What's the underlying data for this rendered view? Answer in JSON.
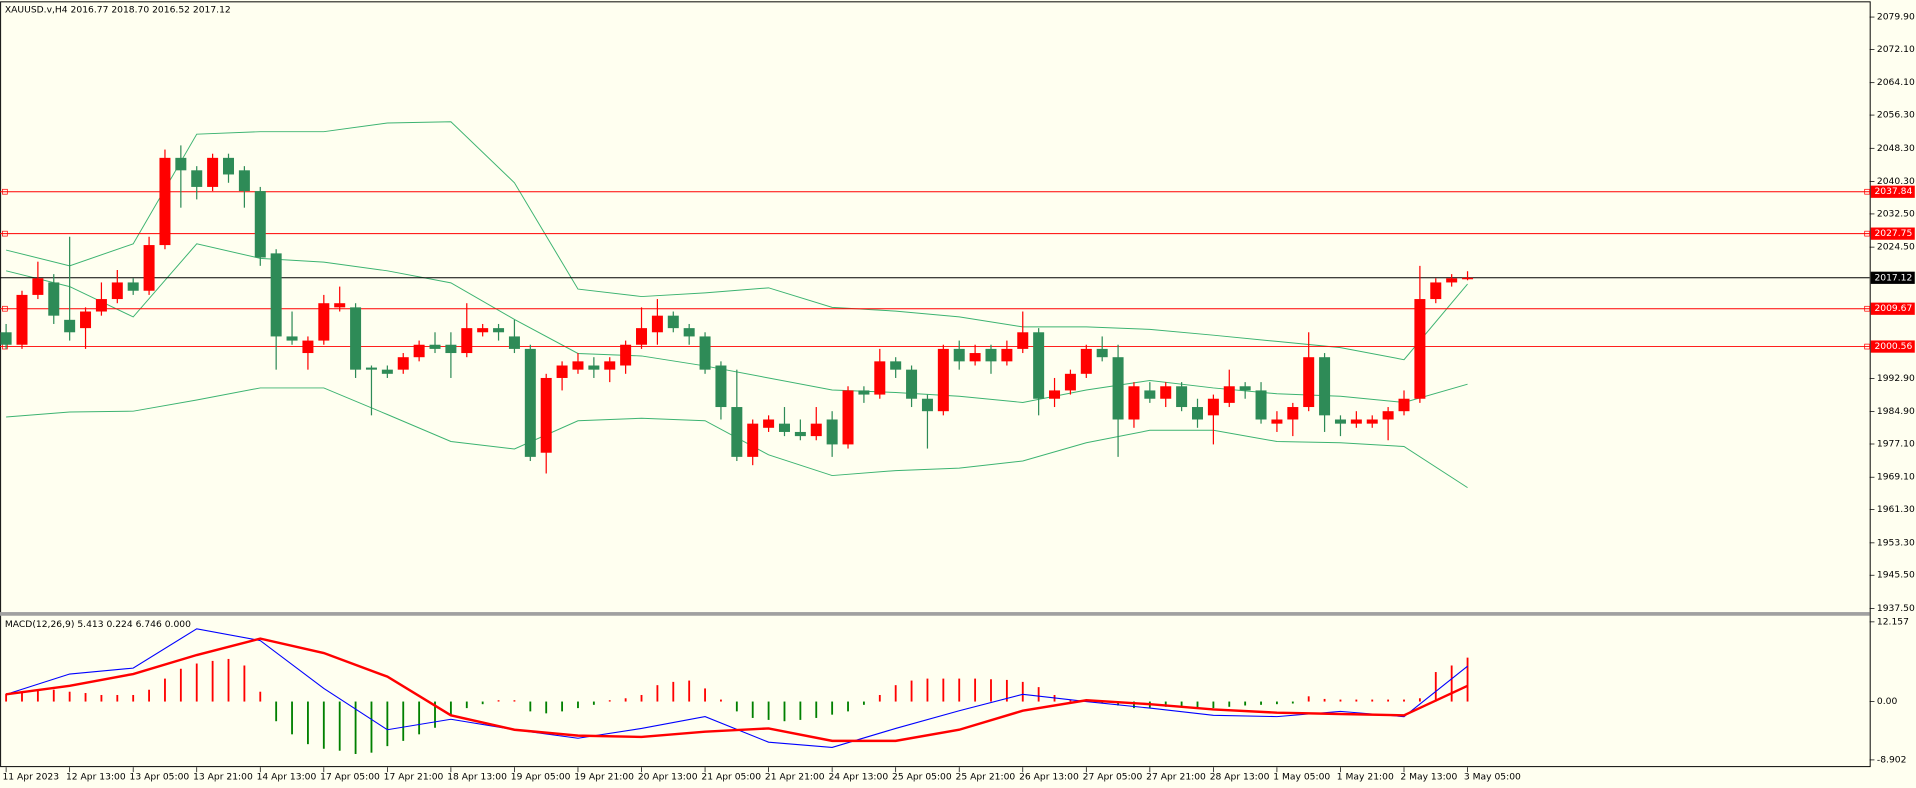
{
  "chart_data": [
    {
      "type": "candlestick",
      "title": "XAUUSD.v,H4  2016.77 2018.70 2016.52 2017.12",
      "categories": [
        "11 Apr 2023",
        null,
        null,
        null,
        "12 Apr 13:00",
        null,
        null,
        null,
        "13 Apr 05:00",
        null,
        null,
        null,
        "13 Apr 21:00",
        null,
        null,
        null,
        "14 Apr 13:00",
        null,
        null,
        null,
        "17 Apr 05:00",
        null,
        null,
        null,
        "17 Apr 21:00",
        null,
        null,
        null,
        "18 Apr 13:00",
        null,
        null,
        null,
        "19 Apr 05:00",
        null,
        null,
        null,
        "19 Apr 21:00",
        null,
        null,
        null,
        "20 Apr 13:00",
        null,
        null,
        null,
        "21 Apr 05:00",
        null,
        null,
        null,
        "21 Apr 21:00",
        null,
        null,
        null,
        "24 Apr 13:00",
        null,
        null,
        null,
        "25 Apr 05:00",
        null,
        null,
        null,
        "25 Apr 21:00",
        null,
        null,
        null,
        "26 Apr 13:00",
        null,
        null,
        null,
        "27 Apr 05:00",
        null,
        null,
        null,
        "27 Apr 21:00",
        null,
        null,
        null,
        "28 Apr 13:00",
        null,
        null,
        null,
        "1 May 05:00",
        null,
        null,
        null,
        "1 May 21:00",
        null,
        null,
        null,
        "2 May 13:00",
        null,
        null,
        null,
        "3 May 05:00"
      ],
      "open": [
        2004,
        2001,
        2013,
        2016,
        2007,
        2005,
        2009,
        2012,
        2016,
        2014,
        2025,
        2046,
        2043,
        2039,
        2046,
        2043,
        2038,
        2023,
        2003,
        1999,
        2002,
        2010,
        2010,
        1995.5,
        1995,
        1995,
        1998,
        2001,
        2001,
        1999,
        2004,
        2005,
        2003,
        2000,
        1975,
        1993,
        1995,
        1996,
        1995,
        1996,
        2001,
        2004,
        2008,
        2005,
        2003,
        1996,
        1986,
        1974,
        1981,
        1982,
        1980,
        1979,
        1983,
        1977,
        1990,
        1989,
        1997,
        1995,
        1988,
        1985,
        2000,
        1997,
        2000,
        1997,
        2000,
        2004,
        1988,
        1990,
        1994,
        2000,
        1998,
        1983,
        1990,
        1988,
        1991,
        1986,
        1984,
        1987,
        1991,
        1990,
        1982,
        1983,
        1986,
        1998,
        1983,
        1982,
        1982,
        1983,
        1985,
        1988,
        2012,
        2016,
        2016.77
      ],
      "high": [
        2006,
        2014,
        2021,
        2018,
        2027,
        2010,
        2016,
        2019,
        2017,
        2027,
        2048,
        2049,
        2044,
        2047,
        2047,
        2044,
        2039,
        2024,
        2009,
        2003,
        2013,
        2015,
        2011,
        1996,
        1996,
        1999,
        2002,
        2004,
        2004,
        2011,
        2006,
        2006,
        2007,
        2001,
        1994,
        1997,
        1999,
        1998,
        1998,
        2002,
        2010,
        2012,
        2009,
        2006,
        2004,
        1997,
        1995,
        1983,
        1984,
        1986,
        1983,
        1986,
        1985,
        1991,
        1991,
        2000,
        1998,
        1996,
        1989,
        2001,
        2002,
        2001,
        2001,
        2002,
        2009,
        2005,
        1993,
        1995,
        2001,
        2003,
        2001,
        1992,
        1992,
        1992,
        1992,
        1988,
        1989,
        1995,
        1992,
        1992,
        1985,
        1987,
        2004,
        1999,
        1984,
        1985,
        1984,
        1986,
        1990,
        2020,
        2017,
        2018,
        2018.7
      ],
      "low": [
        2000,
        2000,
        2012,
        2006,
        2002,
        2000,
        2008,
        2011,
        2013,
        2013,
        2024,
        2034,
        2036,
        2038,
        2040,
        2034,
        2020,
        1995,
        2001,
        1995,
        2001,
        2009,
        1993,
        1984,
        1993,
        1994,
        1997,
        1999,
        1993,
        1998,
        2003,
        2002,
        1999,
        1973,
        1970,
        1990,
        1994,
        1993,
        1992,
        1994,
        2000,
        2001,
        2004,
        2001,
        1994,
        1983,
        1973,
        1972,
        1980,
        1979,
        1978,
        1978,
        1974,
        1976,
        1987,
        1988,
        1993,
        1986,
        1976,
        1984,
        1995,
        1996,
        1994,
        1996,
        1999,
        1984,
        1986,
        1989,
        1993,
        1997,
        1974,
        1981,
        1987,
        1986,
        1985,
        1981,
        1977,
        1986,
        1988,
        1982,
        1980,
        1979,
        1985,
        1980,
        1979,
        1981,
        1981,
        1978,
        1984,
        1987,
        2011,
        2015,
        2016.52
      ],
      "close": [
        2001,
        2013,
        2017,
        2008,
        2004,
        2009,
        2012,
        2016,
        2014,
        2025,
        2046,
        2043,
        2039,
        2046,
        2042,
        2038,
        2022,
        2003,
        2002,
        2002,
        2011,
        2011,
        1995,
        1995,
        1994,
        1998,
        2001,
        2000,
        1999,
        2005,
        2005,
        2004,
        2000,
        1974,
        1993,
        1996,
        1997,
        1995,
        1997,
        2001,
        2005,
        2008,
        2005,
        2003,
        1995,
        1986,
        1974,
        1982,
        1983,
        1980,
        1979,
        1982,
        1977,
        1990,
        1989,
        1997,
        1995,
        1988,
        1985,
        2000,
        1997,
        1999,
        1997,
        2000,
        2004,
        1988,
        1990,
        1994,
        2000,
        1998,
        1983,
        1991,
        1988,
        1991,
        1986,
        1983,
        1988,
        1991,
        1990,
        1983,
        1983,
        1986,
        1998,
        1984,
        1982,
        1983,
        1983,
        1985,
        1988,
        2012,
        2016,
        2017,
        2017.12
      ],
      "up_color": "#ff0000",
      "down_color": "#2e8b57",
      "bands": [
        {
          "color": "#3cb371",
          "x": [
            0,
            4,
            8,
            12,
            16,
            20,
            24,
            28,
            32,
            36,
            40,
            44,
            48,
            52,
            56,
            60,
            64,
            68,
            72,
            76,
            80,
            84,
            88,
            92
          ],
          "values": [
            2023.8,
            2020,
            2025.3,
            2051.7,
            2052.3,
            2052.3,
            2054.4,
            2054.7,
            2040,
            2014.4,
            2012.6,
            2013.5,
            2014.7,
            2010,
            2009.1,
            2007.7,
            2005.3,
            2005.3,
            2004.7,
            2003.3,
            2001.8,
            2000.3,
            1997.4,
            2015.6
          ]
        },
        {
          "color": "#3cb371",
          "x": [
            0,
            4,
            8,
            12,
            16,
            20,
            24,
            28,
            32,
            36,
            40,
            44,
            48,
            52,
            56,
            60,
            64,
            68,
            72,
            76,
            80,
            84,
            88,
            92
          ],
          "values": [
            2018.8,
            2015,
            2007.7,
            2025.3,
            2021.8,
            2020.9,
            2018.8,
            2015.9,
            2007.1,
            1998.9,
            1998.3,
            1995.9,
            1993,
            1990.1,
            1989.5,
            1988.6,
            1987.1,
            1990.1,
            1992.4,
            1990.6,
            1989.2,
            1988.6,
            1987.1,
            1991.5
          ]
        },
        {
          "color": "#3cb371",
          "x": [
            0,
            4,
            8,
            12,
            16,
            20,
            24,
            28,
            32,
            36,
            40,
            44,
            48,
            52,
            56,
            60,
            64,
            68,
            72,
            76,
            80,
            84,
            88,
            92
          ],
          "values": [
            1983.6,
            1984.8,
            1985,
            1987.7,
            1990.6,
            1990.6,
            1984.2,
            1977.7,
            1975.9,
            1982.7,
            1983.3,
            1982.7,
            1974.5,
            1969.5,
            1970.7,
            1971.3,
            1973,
            1977.4,
            1980.4,
            1980.4,
            1977.7,
            1977.4,
            1976.5,
            1966.6
          ]
        }
      ],
      "hlines": [
        {
          "value": 2037.84,
          "color": "#ff0000"
        },
        {
          "value": 2027.75,
          "color": "#ff0000"
        },
        {
          "value": 2009.67,
          "color": "#ff0000"
        },
        {
          "value": 2000.56,
          "color": "#ff0000"
        }
      ],
      "price_line": {
        "value": 2017.12,
        "color": "#000000"
      },
      "ylim": [
        1936.63,
        2083.42
      ],
      "yticks": [
        {
          "value": 2079.9,
          "label": "2079.90"
        },
        {
          "value": 2072.1,
          "label": "2072.10"
        },
        {
          "value": 2064.1,
          "label": "2064.10"
        },
        {
          "value": 2056.3,
          "label": "2056.30"
        },
        {
          "value": 2048.3,
          "label": "2048.30"
        },
        {
          "value": 2040.3,
          "label": "2040.30"
        },
        {
          "value": 2032.5,
          "label": "2032.50"
        },
        {
          "value": 2024.5,
          "label": "2024.50"
        },
        {
          "value": 1992.9,
          "label": "1992.90"
        },
        {
          "value": 1984.9,
          "label": "1984.90"
        },
        {
          "value": 1977.1,
          "label": "1977.10"
        },
        {
          "value": 1969.1,
          "label": "1969.10"
        },
        {
          "value": 1961.3,
          "label": "1961.30"
        },
        {
          "value": 1953.3,
          "label": "1953.30"
        },
        {
          "value": 1945.5,
          "label": "1945.50"
        },
        {
          "value": 1937.5,
          "label": "1937.50"
        }
      ]
    },
    {
      "type": "macd",
      "title": "MACD(12,26,9) 5.413 0.224 6.746 0.000",
      "histogram": [
        1.2,
        1.5,
        1.8,
        1.8,
        1.5,
        1.3,
        1.0,
        1.0,
        1.0,
        1.8,
        3.5,
        5.0,
        5.8,
        6.2,
        6.5,
        5.5,
        1.5,
        -3,
        -5,
        -6.5,
        -7.2,
        -7.5,
        -8.0,
        -7.8,
        -6.8,
        -6.0,
        -5.0,
        -4.0,
        -2.0,
        -1.0,
        -0.4,
        0.2,
        0.2,
        -1.5,
        -1.8,
        -1.5,
        -1.0,
        -0.5,
        0.2,
        0.5,
        1.0,
        2.5,
        3.0,
        3.2,
        2.0,
        0.3,
        -1.5,
        -2.5,
        -2.8,
        -3.0,
        -2.8,
        -2.5,
        -2.0,
        -1.5,
        -0.5,
        1.0,
        2.5,
        3.2,
        3.5,
        3.5,
        3.5,
        3.5,
        3.4,
        3.3,
        3.0,
        2.2,
        1.0,
        0.3,
        0.1,
        -0.3,
        -0.6,
        -1.0,
        -0.9,
        -0.8,
        -0.9,
        -1.0,
        -1.0,
        -0.8,
        -0.6,
        -0.5,
        -0.4,
        -0.3,
        0.8,
        0.4,
        0.3,
        0.3,
        0.3,
        0.3,
        0.3,
        0.5,
        4.5,
        5.5,
        6.7
      ],
      "hist_up_color": "#ff0000",
      "hist_down_color": "#008000",
      "lines": [
        {
          "color": "#0000ff",
          "x": [
            0,
            4,
            8,
            12,
            16,
            20,
            24,
            28,
            32,
            36,
            40,
            44,
            48,
            52,
            56,
            60,
            64,
            68,
            72,
            76,
            80,
            84,
            88,
            92
          ],
          "values": [
            1.1,
            4.2,
            5.1,
            11.1,
            9.3,
            2.0,
            -4.3,
            -2.7,
            -4.3,
            -5.6,
            -4.1,
            -2.3,
            -6.2,
            -7.0,
            -4.1,
            -1.4,
            1.1,
            0,
            -1.0,
            -2.1,
            -2.3,
            -1.5,
            -2.3,
            5.4
          ]
        },
        {
          "color": "#ff0000",
          "x": [
            0,
            4,
            8,
            12,
            16,
            20,
            24,
            28,
            32,
            36,
            40,
            44,
            48,
            52,
            56,
            60,
            64,
            68,
            72,
            76,
            80,
            84,
            88,
            92
          ],
          "values": [
            1.1,
            2.4,
            4.2,
            7.1,
            9.6,
            7.4,
            3.8,
            -2.1,
            -4.3,
            -5.2,
            -5.4,
            -4.6,
            -4.1,
            -6.0,
            -6.0,
            -4.3,
            -1.4,
            0.2,
            -0.4,
            -1.2,
            -1.7,
            -1.9,
            -2.1,
            2.4
          ]
        }
      ],
      "ylim": [
        -10.02,
        13.09
      ],
      "yticks": [
        12.157,
        {
          "value": 0,
          "label": "0.00"
        },
        -8.902
      ]
    }
  ]
}
